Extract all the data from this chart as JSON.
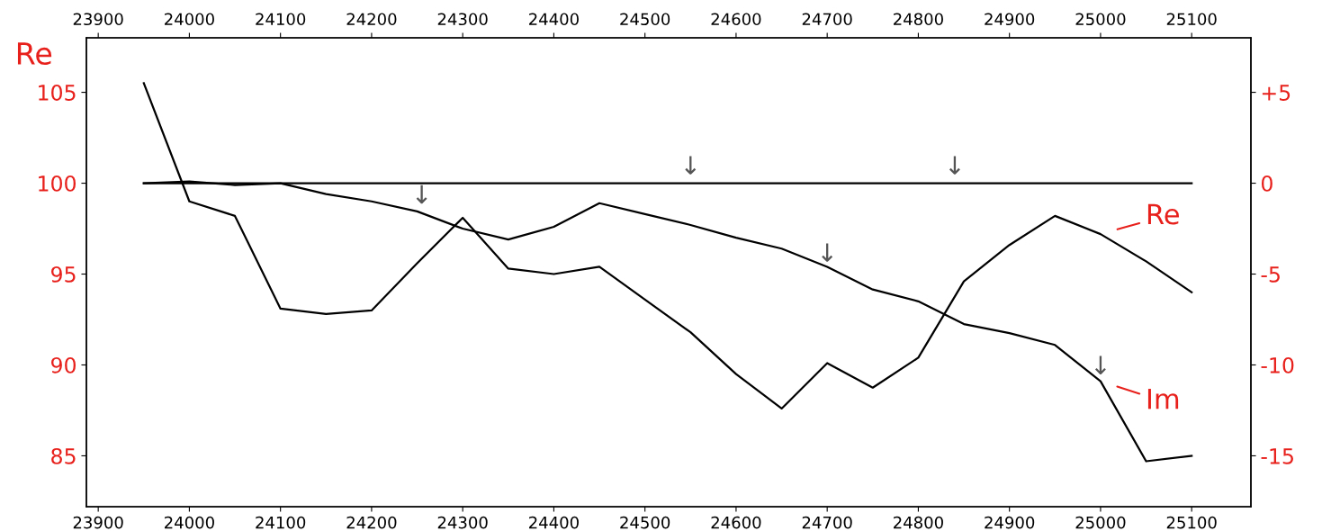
{
  "chart_data": {
    "type": "line",
    "ylabel": "Re",
    "x": [
      23950,
      24000,
      24050,
      24100,
      24150,
      24200,
      24250,
      24300,
      24350,
      24400,
      24450,
      24500,
      24550,
      24600,
      24650,
      24700,
      24750,
      24800,
      24850,
      24900,
      24950,
      25000,
      25050,
      25100
    ],
    "series": [
      {
        "name": "Re",
        "color": "#000000",
        "values": [
          105.5,
          99.0,
          98.2,
          93.1,
          92.8,
          93.0,
          95.6,
          98.1,
          95.3,
          95.0,
          95.4,
          93.6,
          91.8,
          89.5,
          87.6,
          90.1,
          88.75,
          90.4,
          94.6,
          96.6,
          98.2,
          97.2,
          95.7,
          94.0
        ]
      },
      {
        "name": "Im",
        "color": "#000000",
        "axis": "y2",
        "values": [
          0,
          0.1,
          -0.1,
          0,
          -0.6,
          -1.0,
          -1.55,
          -2.5,
          -3.1,
          -2.4,
          -1.1,
          -1.7,
          -2.3,
          -3.0,
          -3.6,
          -4.6,
          -5.85,
          -6.5,
          -7.75,
          -8.25,
          -8.9,
          -10.9,
          -15.3,
          -15.0
        ]
      },
      {
        "color": "#000000",
        "x": [
          23950,
          25100
        ],
        "values": [
          100,
          100
        ]
      }
    ],
    "annotations": [
      {
        "text": "↓",
        "x": 24255,
        "y": 98.6
      },
      {
        "text": "↓",
        "x": 24550,
        "y": 100.2
      },
      {
        "text": "↓",
        "x": 24840,
        "y": 100.2
      },
      {
        "text": "↓",
        "x": 24700,
        "y": 95.4
      },
      {
        "text": "↓",
        "x": 25000,
        "y": 89.2
      }
    ],
    "xlim": [
      23887,
      25165
    ],
    "xticks": [
      23900,
      24000,
      24100,
      24200,
      24300,
      24400,
      24500,
      24600,
      24700,
      24800,
      24900,
      25000,
      25100
    ],
    "x2lim": [
      23887,
      25165
    ],
    "x2ticks": [
      23900,
      24000,
      24100,
      24200,
      24300,
      24400,
      24500,
      24600,
      24700,
      24800,
      24900,
      25000,
      25100
    ],
    "ylim": [
      82.2,
      108.0
    ],
    "yticks": [
      85,
      90,
      95,
      100,
      105
    ],
    "y2lim": [
      -17.8,
      8.0
    ],
    "y2ticks": [
      -15,
      -10,
      -5,
      0,
      {
        "value": 5,
        "label": "+5"
      }
    ],
    "grid": false,
    "legend": false,
    "marker": "none",
    "line_style": "solid"
  }
}
